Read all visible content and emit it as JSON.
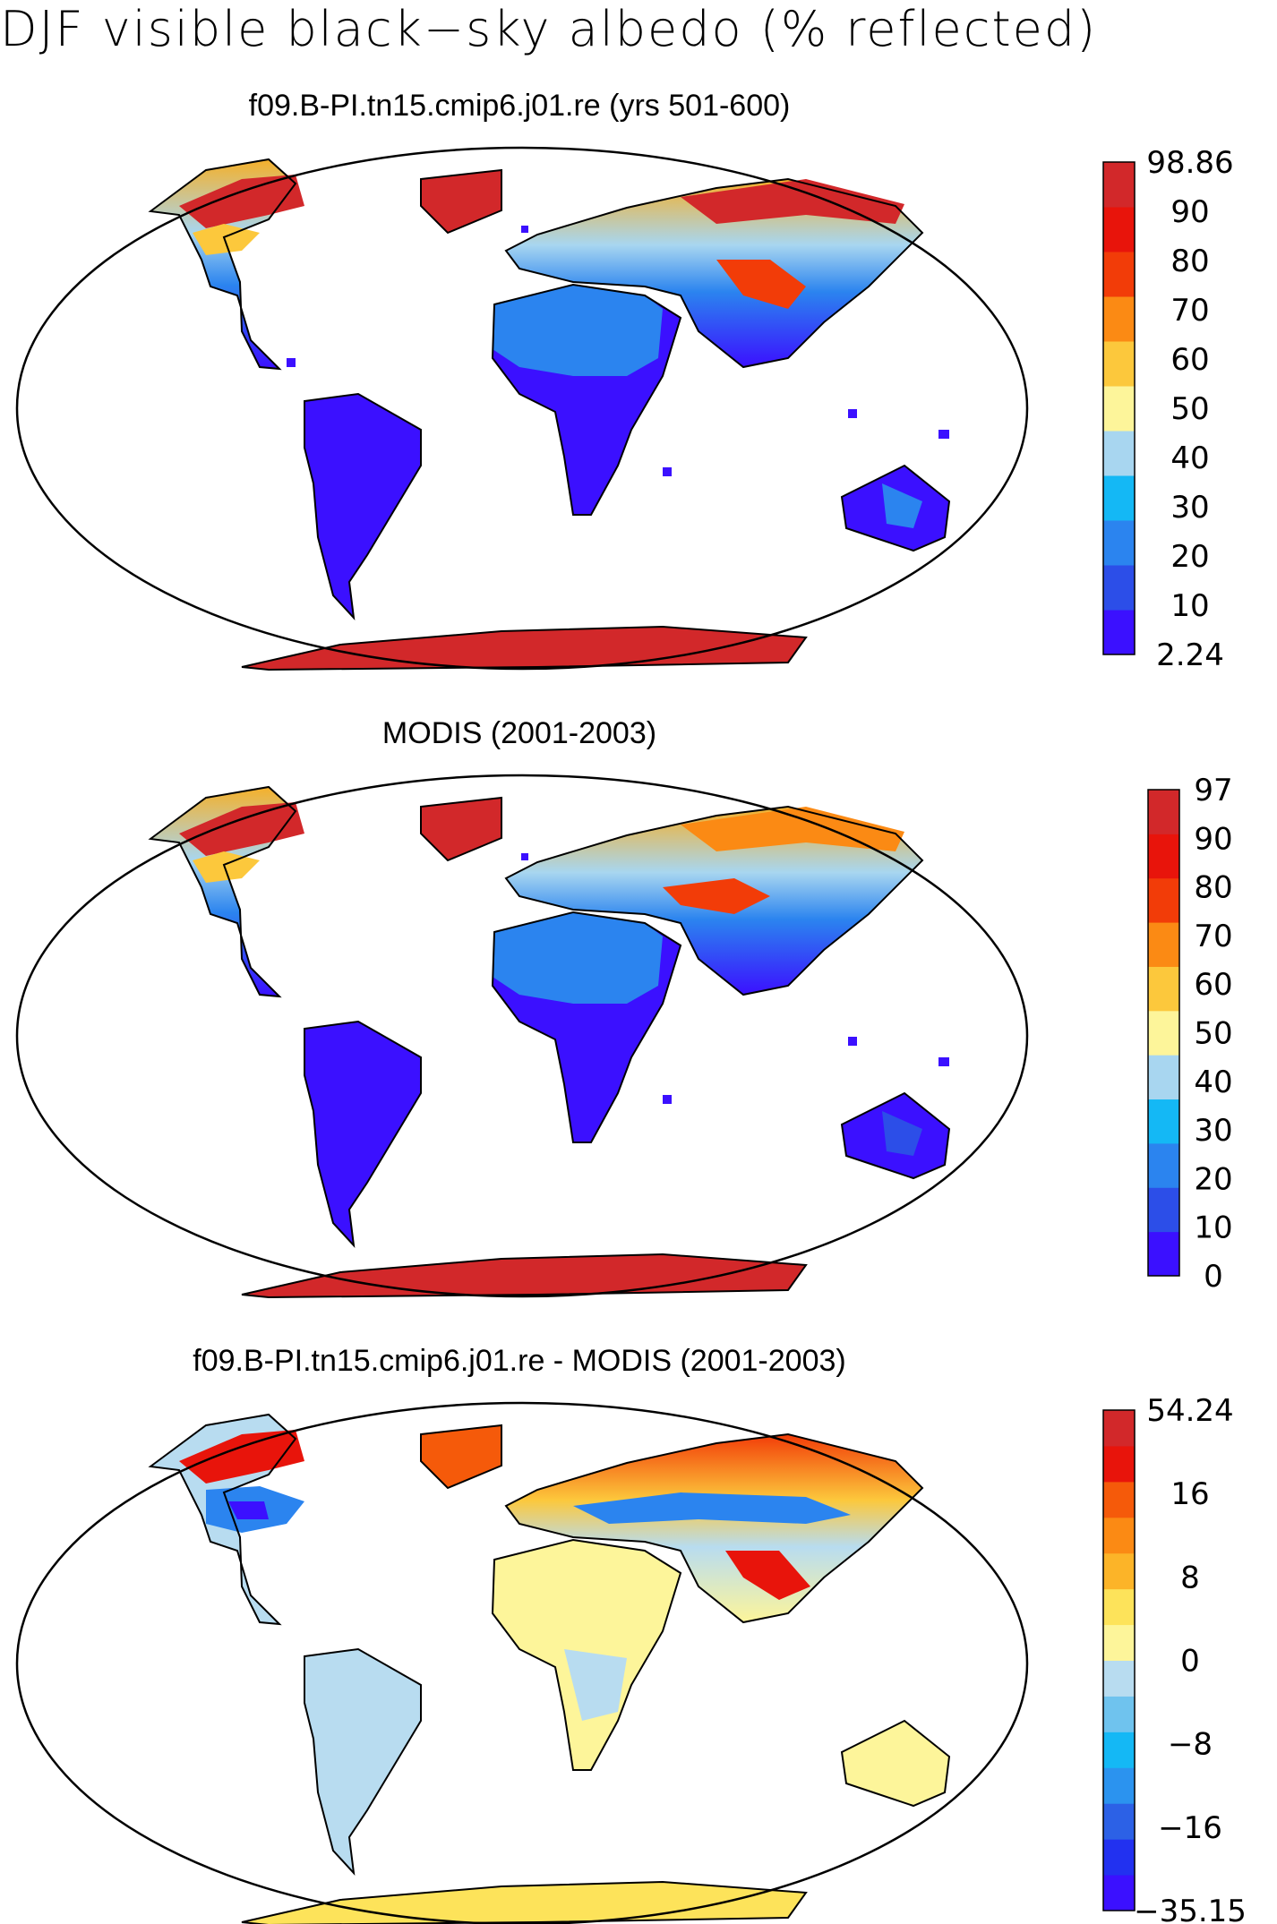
{
  "title": "DJF visible black−sky albedo (% reflected)",
  "colors": {
    "outline": "#000000",
    "ocean": "#ffffff"
  },
  "panels": [
    {
      "title": "f09.B-PI.tn15.cmip6.j01.re (yrs 501-600)",
      "colorbar": {
        "labels": [
          "98.86",
          "90",
          "80",
          "70",
          "60",
          "50",
          "40",
          "30",
          "20",
          "10",
          "2.24"
        ],
        "colors": [
          "#3b10ff",
          "#2c4ee8",
          "#2b84ef",
          "#14b8f5",
          "#a8d6f0",
          "#fdf59a",
          "#fcc83c",
          "#fb8a14",
          "#f23c08",
          "#e8140b",
          "#d2282a"
        ]
      }
    },
    {
      "title": "MODIS (2001-2003)",
      "colorbar": {
        "labels": [
          "97",
          "90",
          "80",
          "70",
          "60",
          "50",
          "40",
          "30",
          "20",
          "10",
          "0"
        ],
        "colors": [
          "#3b10ff",
          "#2c4ee8",
          "#2b84ef",
          "#14b8f5",
          "#a8d6f0",
          "#fdf59a",
          "#fcc83c",
          "#fb8a14",
          "#f23c08",
          "#e8140b",
          "#d2282a"
        ]
      }
    },
    {
      "title": "f09.B-PI.tn15.cmip6.j01.re - MODIS (2001-2003)",
      "colorbar": {
        "labels": [
          "54.24",
          "16",
          "8",
          "0",
          "−8",
          "−16",
          "−35.15"
        ],
        "colors": [
          "#3b10ff",
          "#2231f0",
          "#2c61e6",
          "#2b93ef",
          "#14b8f5",
          "#6fc3ee",
          "#b8dcf0",
          "#fdf59a",
          "#fde35a",
          "#fcb428",
          "#fb8a14",
          "#f55a0a",
          "#e8140b",
          "#d2282a"
        ]
      }
    }
  ]
}
